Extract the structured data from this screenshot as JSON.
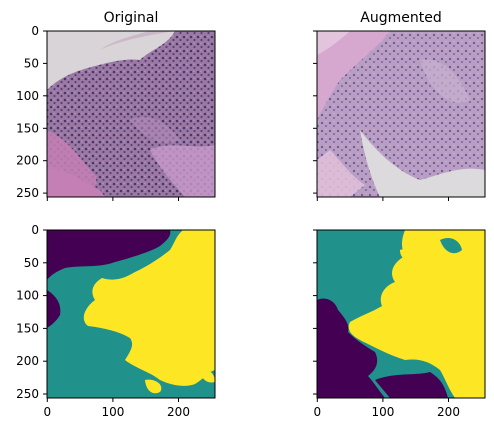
{
  "figure": {
    "panels": [
      {
        "id": "original-image",
        "title": "Original",
        "kind": "histology-image",
        "show_yticklabels": true,
        "show_xticklabels": false
      },
      {
        "id": "augmented-image",
        "title": "Augmented",
        "kind": "histology-image",
        "show_yticklabels": false,
        "show_xticklabels": false
      },
      {
        "id": "original-mask",
        "title": "",
        "kind": "segmentation-mask",
        "show_yticklabels": true,
        "show_xticklabels": true
      },
      {
        "id": "augmented-mask",
        "title": "",
        "kind": "segmentation-mask",
        "show_yticklabels": false,
        "show_xticklabels": true
      }
    ],
    "axis_range": {
      "x": [
        0,
        256
      ],
      "y": [
        0,
        256
      ]
    },
    "y_ticks": [
      0,
      50,
      100,
      150,
      200,
      250
    ],
    "x_ticks": [
      0,
      100,
      200
    ],
    "mask_colors": {
      "class0": "#440154",
      "class1": "#21918c",
      "class2": "#fde725"
    },
    "tissue_colors": {
      "background": "#d9d4d8",
      "stroma": "#c47fb4",
      "nuclei": "#5a3e78",
      "mid": "#9a7aa3"
    }
  }
}
